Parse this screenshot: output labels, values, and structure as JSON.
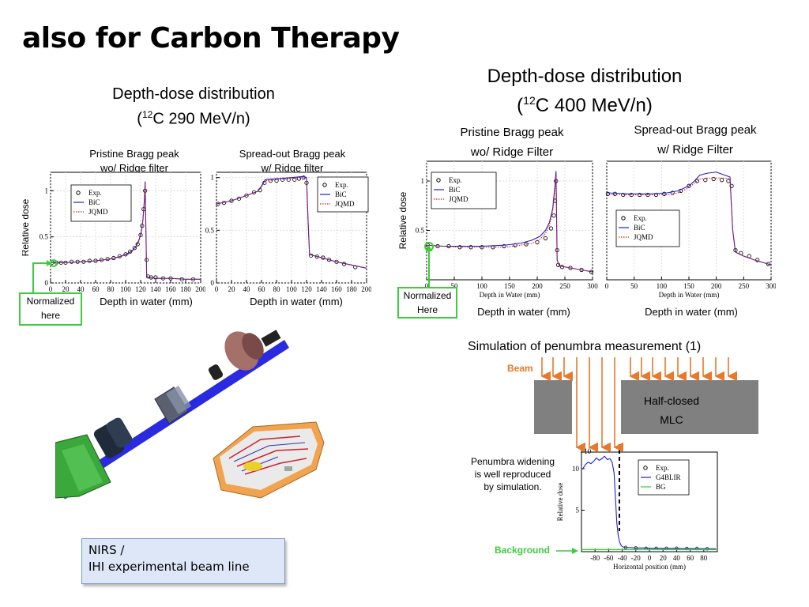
{
  "slide": {
    "title": "also for Carbon Therapy",
    "left_header_line1": "Depth-dose distribution",
    "left_header_line2_pre": "(",
    "left_header_sup": "12",
    "left_header_line2_post": "C 290 MeV/n)",
    "right_header_line1": "Depth-dose distribution",
    "right_header_line2_pre": "(",
    "right_header_sup": "12",
    "right_header_line2_post": "C 400 MeV/n)",
    "normalized_left": [
      "Normalized",
      "here"
    ],
    "normalized_right": [
      "Normalized",
      "Here"
    ],
    "caption_lines": [
      "NIRS /",
      "IHI experimental beam line"
    ],
    "penumbra_title": "Simulation of penumbra measurement (1)",
    "beam_label": "Beam",
    "mlc_label_lines": [
      "Half-closed",
      "MLC"
    ],
    "penumbra_note_lines": [
      "Penumbra widening",
      "is well reproduced",
      "by simulation."
    ],
    "background_label": "Background",
    "colors": {
      "green": "#3ccc3c",
      "orange": "#e8782a",
      "mlc": "#808080",
      "bic": "#1f1fd0",
      "jqmd": "#d81b1b"
    }
  },
  "chart_data": [
    {
      "id": "c290-pristine",
      "type": "line",
      "title_lines": [
        "Pristine Bragg peak",
        "wo/ Ridge filter"
      ],
      "xlabel": "Depth in water (mm)",
      "ylabel": "Relative dose",
      "xlim": [
        0,
        200
      ],
      "ylim": [
        0,
        1.2
      ],
      "xticks": [
        0,
        20,
        40,
        60,
        80,
        100,
        120,
        140,
        160,
        180,
        200
      ],
      "yticks": [
        0,
        0.5,
        1
      ],
      "grid": true,
      "legend": "top-left",
      "series": [
        {
          "name": "Exp.",
          "style": "markers",
          "x": [
            2,
            8,
            14,
            20,
            28,
            36,
            44,
            52,
            60,
            68,
            76,
            84,
            92,
            100,
            106,
            112,
            116,
            120,
            122,
            124,
            126,
            128,
            130,
            134,
            140,
            150,
            160,
            175,
            190
          ],
          "y": [
            0.22,
            0.22,
            0.22,
            0.22,
            0.23,
            0.23,
            0.23,
            0.24,
            0.24,
            0.25,
            0.26,
            0.27,
            0.29,
            0.31,
            0.34,
            0.38,
            0.42,
            0.52,
            0.62,
            0.8,
            1.0,
            0.25,
            0.07,
            0.06,
            0.06,
            0.05,
            0.05,
            0.04,
            0.04
          ]
        },
        {
          "name": "BiC",
          "style": "solid",
          "x": [
            0,
            20,
            40,
            60,
            80,
            90,
            100,
            105,
            110,
            114,
            118,
            121,
            123,
            125,
            126,
            127,
            128,
            130,
            140,
            160,
            180,
            200
          ],
          "y": [
            0.22,
            0.22,
            0.23,
            0.24,
            0.26,
            0.28,
            0.31,
            0.33,
            0.36,
            0.4,
            0.47,
            0.56,
            0.68,
            0.9,
            1.1,
            0.6,
            0.08,
            0.06,
            0.05,
            0.05,
            0.04,
            0.04
          ]
        },
        {
          "name": "JQMD",
          "style": "dotted",
          "x": [
            0,
            20,
            40,
            60,
            80,
            90,
            100,
            105,
            110,
            114,
            118,
            121,
            123,
            125,
            126,
            127,
            128,
            130,
            140,
            160,
            180,
            200
          ],
          "y": [
            0.22,
            0.22,
            0.23,
            0.24,
            0.26,
            0.28,
            0.3,
            0.32,
            0.35,
            0.39,
            0.46,
            0.55,
            0.67,
            0.88,
            1.07,
            0.55,
            0.08,
            0.06,
            0.05,
            0.05,
            0.04,
            0.04
          ]
        }
      ]
    },
    {
      "id": "c290-sobp",
      "type": "line",
      "title_lines": [
        "Spread-out Bragg peak",
        "w/ Ridge filter"
      ],
      "xlabel": "Depth in water (mm)",
      "ylabel": "",
      "xlim": [
        0,
        200
      ],
      "ylim": [
        0,
        1.05
      ],
      "xticks": [
        0,
        20,
        40,
        60,
        80,
        100,
        120,
        140,
        160,
        180,
        200
      ],
      "yticks": [
        0,
        0.5,
        1
      ],
      "grid": true,
      "legend": "top-right",
      "series": [
        {
          "name": "Exp.",
          "style": "markers",
          "x": [
            2,
            10,
            20,
            30,
            40,
            50,
            58,
            64,
            72,
            80,
            88,
            96,
            104,
            110,
            116,
            120,
            126,
            134,
            142,
            150,
            160,
            170,
            185
          ],
          "y": [
            0.75,
            0.76,
            0.78,
            0.8,
            0.83,
            0.86,
            0.88,
            0.95,
            0.97,
            0.97,
            0.98,
            0.98,
            0.98,
            0.99,
            1.0,
            0.95,
            0.26,
            0.25,
            0.24,
            0.22,
            0.2,
            0.18,
            0.15
          ]
        },
        {
          "name": "BiC",
          "style": "solid",
          "x": [
            0,
            20,
            40,
            55,
            60,
            65,
            80,
            100,
            115,
            120,
            122,
            124,
            140,
            160,
            180,
            200
          ],
          "y": [
            0.75,
            0.78,
            0.83,
            0.87,
            0.92,
            0.98,
            0.99,
            1.0,
            1.01,
            1.0,
            0.6,
            0.27,
            0.24,
            0.2,
            0.17,
            0.14
          ]
        },
        {
          "name": "JQMD",
          "style": "dotted",
          "x": [
            0,
            20,
            40,
            55,
            60,
            65,
            80,
            100,
            115,
            120,
            122,
            124,
            140,
            160,
            180,
            200
          ],
          "y": [
            0.75,
            0.78,
            0.83,
            0.87,
            0.91,
            0.97,
            0.98,
            0.99,
            1.0,
            0.99,
            0.6,
            0.27,
            0.24,
            0.2,
            0.17,
            0.14
          ]
        }
      ]
    },
    {
      "id": "c400-pristine",
      "type": "line",
      "title_lines": [
        "Pristine Bragg peak",
        "wo/ Ridge Filter"
      ],
      "xlabel": "Depth in Water (mm)",
      "xlabel2": "Depth in water (mm)",
      "ylabel": "Relative dose",
      "xlim": [
        0,
        300
      ],
      "ylim": [
        0,
        1.2
      ],
      "xticks": [
        0,
        50,
        100,
        150,
        200,
        250,
        300
      ],
      "yticks": [
        0.5,
        1
      ],
      "grid": true,
      "legend": "top-left",
      "series": [
        {
          "name": "Exp.",
          "style": "markers",
          "x": [
            2,
            20,
            40,
            60,
            80,
            100,
            120,
            140,
            160,
            180,
            200,
            215,
            225,
            230,
            232,
            234,
            236,
            238,
            245,
            260,
            280,
            298
          ],
          "y": [
            0.35,
            0.34,
            0.34,
            0.33,
            0.33,
            0.33,
            0.33,
            0.34,
            0.35,
            0.36,
            0.38,
            0.42,
            0.52,
            0.65,
            0.8,
            1.0,
            0.3,
            0.15,
            0.13,
            0.12,
            0.1,
            0.08
          ]
        },
        {
          "name": "BiC",
          "style": "solid",
          "x": [
            0,
            30,
            60,
            100,
            140,
            170,
            190,
            205,
            215,
            222,
            228,
            232,
            234,
            236,
            240,
            260,
            280,
            300
          ],
          "y": [
            0.35,
            0.34,
            0.34,
            0.34,
            0.35,
            0.37,
            0.4,
            0.44,
            0.5,
            0.58,
            0.72,
            0.95,
            1.1,
            0.2,
            0.14,
            0.12,
            0.1,
            0.08
          ]
        },
        {
          "name": "JQMD",
          "style": "dotted",
          "x": [
            0,
            30,
            60,
            100,
            140,
            170,
            190,
            205,
            215,
            222,
            228,
            232,
            234,
            236,
            240,
            260,
            280,
            300
          ],
          "y": [
            0.35,
            0.34,
            0.33,
            0.33,
            0.33,
            0.35,
            0.37,
            0.41,
            0.47,
            0.55,
            0.7,
            0.9,
            1.05,
            0.2,
            0.14,
            0.12,
            0.1,
            0.08
          ]
        }
      ]
    },
    {
      "id": "c400-sobp",
      "type": "line",
      "title_lines": [
        "Spread-out Bragg peak",
        "w/ Ridge Filter"
      ],
      "xlabel": "Depth in Water (mm)",
      "xlabel2": "Depth in water (mm)",
      "ylabel": "",
      "xlim": [
        0,
        300
      ],
      "ylim": [
        0,
        1.2
      ],
      "xticks": [
        0,
        50,
        100,
        150,
        200,
        250,
        300
      ],
      "yticks": [],
      "grid": true,
      "legend": "middle-left",
      "series": [
        {
          "name": "Exp.",
          "style": "markers",
          "x": [
            2,
            15,
            30,
            45,
            60,
            75,
            90,
            105,
            120,
            135,
            150,
            165,
            180,
            195,
            210,
            222,
            228,
            235,
            245,
            260,
            275,
            295
          ],
          "y": [
            0.87,
            0.87,
            0.86,
            0.86,
            0.86,
            0.86,
            0.86,
            0.87,
            0.88,
            0.9,
            0.95,
            1.0,
            1.01,
            1.02,
            1.01,
            1.0,
            0.95,
            0.3,
            0.27,
            0.24,
            0.2,
            0.16
          ]
        },
        {
          "name": "BiC",
          "style": "solid",
          "x": [
            0,
            40,
            80,
            110,
            130,
            150,
            160,
            170,
            185,
            200,
            215,
            225,
            230,
            235,
            250,
            270,
            300
          ],
          "y": [
            0.88,
            0.87,
            0.87,
            0.88,
            0.9,
            0.95,
            1.0,
            1.06,
            1.08,
            1.09,
            1.06,
            1.04,
            0.5,
            0.28,
            0.24,
            0.2,
            0.15
          ]
        },
        {
          "name": "JQMD",
          "style": "dotted",
          "x": [
            0,
            40,
            80,
            110,
            130,
            150,
            160,
            170,
            185,
            200,
            215,
            225,
            230,
            235,
            250,
            270,
            300
          ],
          "y": [
            0.86,
            0.86,
            0.86,
            0.86,
            0.88,
            0.93,
            0.98,
            1.02,
            1.03,
            1.03,
            1.03,
            1.02,
            0.5,
            0.28,
            0.24,
            0.2,
            0.15
          ]
        }
      ]
    },
    {
      "id": "penumbra",
      "type": "scatter",
      "xlabel": "Horizontal position (mm)",
      "ylabel": "Relative dose",
      "yexp_label": "×10",
      "xlim": [
        -100,
        100
      ],
      "ylim": [
        0,
        12
      ],
      "xticks": [
        -80,
        -60,
        -40,
        -20,
        0,
        20,
        40,
        60,
        80
      ],
      "yticks": [
        5,
        10
      ],
      "grid": false,
      "legend": "top-right",
      "series": [
        {
          "name": "Exp.",
          "style": "markers",
          "x": [
            -35,
            -20,
            -5,
            10,
            25,
            40,
            55,
            70,
            85
          ],
          "y": [
            0.5,
            0.45,
            0.4,
            0.4,
            0.4,
            0.4,
            0.38,
            0.38,
            0.35
          ]
        },
        {
          "name": "G4BLIR",
          "style": "solid",
          "x": [
            -98,
            -94,
            -90,
            -86,
            -82,
            -78,
            -74,
            -70,
            -66,
            -62,
            -58,
            -55,
            -52,
            -50,
            -48,
            -46,
            -44,
            -42,
            -40,
            -36,
            -30,
            -20,
            -10,
            0,
            10,
            20,
            30,
            40,
            50,
            60,
            70,
            80,
            90,
            98
          ],
          "y": [
            10.0,
            10.5,
            10.8,
            10.6,
            10.9,
            11.3,
            11.0,
            11.2,
            11.5,
            11.1,
            11.2,
            10.8,
            9.5,
            6.5,
            3.5,
            2.0,
            1.2,
            0.8,
            0.6,
            0.5,
            0.5,
            0.45,
            0.45,
            0.42,
            0.42,
            0.4,
            0.4,
            0.4,
            0.38,
            0.38,
            0.38,
            0.36,
            0.35,
            0.35
          ]
        },
        {
          "name": "BG",
          "style": "solid",
          "x": [
            -100,
            100
          ],
          "y": [
            0.25,
            0.25
          ]
        }
      ]
    }
  ]
}
